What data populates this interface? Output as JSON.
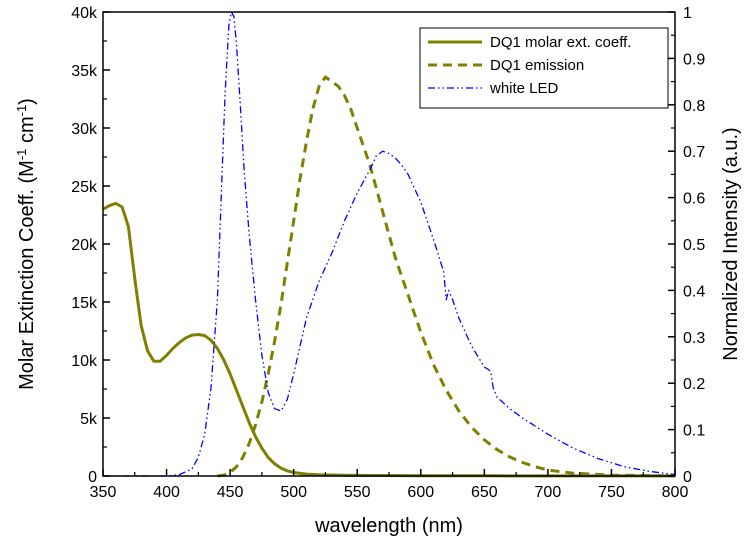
{
  "chart_data": {
    "type": "line",
    "xlabel": "wavelength (nm)",
    "ylabel_left": {
      "main": "Molar Extinction Coeff. (M",
      "sup1": "-1",
      "mid": " cm",
      "sup2": "-1",
      "end": ")"
    },
    "ylabel_right": "Normalized Intensity (a.u.)",
    "xlim": [
      350,
      800
    ],
    "ylim_left": [
      0,
      40000
    ],
    "ylim_right": [
      0,
      1
    ],
    "x_ticks": [
      350,
      400,
      450,
      500,
      550,
      600,
      650,
      700,
      750,
      800
    ],
    "x_tick_labels": [
      "350",
      "400",
      "450",
      "500",
      "550",
      "600",
      "650",
      "700",
      "750",
      "800"
    ],
    "y_left_ticks": [
      0,
      5000,
      10000,
      15000,
      20000,
      25000,
      30000,
      35000,
      40000
    ],
    "y_left_tick_labels": [
      "0",
      "5k",
      "10k",
      "15k",
      "20k",
      "25k",
      "30k",
      "35k",
      "40k"
    ],
    "y_right_ticks": [
      0,
      0.1,
      0.2,
      0.3,
      0.4,
      0.5,
      0.6,
      0.7,
      0.8,
      0.9,
      1
    ],
    "y_right_tick_labels": [
      "0",
      "0.1",
      "0.2",
      "0.3",
      "0.4",
      "0.5",
      "0.6",
      "0.7",
      "0.8",
      "0.9",
      "1"
    ],
    "grid": false,
    "legend_position": "top-right",
    "series": [
      {
        "name": "DQ1 molar ext. coeff.",
        "axis": "left",
        "style": "solid",
        "color": "#808000",
        "x": [
          350,
          355,
          360,
          365,
          370,
          375,
          380,
          385,
          390,
          395,
          400,
          405,
          410,
          415,
          420,
          425,
          430,
          435,
          440,
          445,
          450,
          455,
          460,
          465,
          470,
          475,
          480,
          485,
          490,
          495,
          500,
          510,
          520,
          540,
          560,
          600,
          650,
          700,
          800
        ],
        "y": [
          23000,
          23300,
          23500,
          23200,
          21500,
          17000,
          13000,
          10800,
          9900,
          9900,
          10400,
          11000,
          11500,
          11900,
          12150,
          12200,
          12100,
          11700,
          11000,
          10000,
          8800,
          7400,
          6000,
          4600,
          3400,
          2400,
          1600,
          1050,
          680,
          440,
          300,
          160,
          100,
          60,
          40,
          25,
          15,
          10,
          5
        ]
      },
      {
        "name": "DQ1 emission",
        "axis": "right",
        "style": "dash",
        "color": "#808000",
        "x": [
          440,
          445,
          450,
          455,
          460,
          465,
          470,
          475,
          480,
          485,
          490,
          495,
          500,
          505,
          510,
          515,
          520,
          525,
          530,
          535,
          540,
          545,
          550,
          555,
          560,
          565,
          570,
          575,
          580,
          585,
          590,
          595,
          600,
          610,
          620,
          630,
          640,
          650,
          660,
          670,
          680,
          690,
          700,
          720,
          750,
          800
        ],
        "y": [
          0,
          0.002,
          0.008,
          0.02,
          0.04,
          0.07,
          0.11,
          0.16,
          0.22,
          0.29,
          0.37,
          0.46,
          0.55,
          0.64,
          0.72,
          0.79,
          0.84,
          0.86,
          0.85,
          0.84,
          0.82,
          0.79,
          0.75,
          0.71,
          0.67,
          0.62,
          0.57,
          0.52,
          0.47,
          0.43,
          0.39,
          0.35,
          0.31,
          0.24,
          0.185,
          0.14,
          0.105,
          0.078,
          0.057,
          0.041,
          0.029,
          0.02,
          0.013,
          0.006,
          0.002,
          0
        ]
      },
      {
        "name": "white LED",
        "axis": "right",
        "style": "dashdotdot",
        "color": "#0000ff",
        "x": [
          350,
          400,
          410,
          420,
          425,
          430,
          435,
          440,
          443,
          446,
          449,
          451,
          453,
          455,
          458,
          461,
          465,
          470,
          475,
          480,
          485,
          490,
          495,
          500,
          505,
          510,
          520,
          530,
          540,
          550,
          560,
          565,
          570,
          575,
          580,
          585,
          590,
          600,
          610,
          618,
          620,
          622,
          625,
          630,
          640,
          650,
          653,
          655,
          657,
          660,
          670,
          680,
          700,
          720,
          740,
          760,
          780,
          800
        ],
        "y": [
          0,
          0,
          0.003,
          0.015,
          0.04,
          0.09,
          0.19,
          0.38,
          0.6,
          0.82,
          0.97,
          1.0,
          0.99,
          0.93,
          0.8,
          0.66,
          0.52,
          0.38,
          0.26,
          0.18,
          0.145,
          0.14,
          0.165,
          0.22,
          0.28,
          0.34,
          0.42,
          0.48,
          0.55,
          0.61,
          0.66,
          0.69,
          0.7,
          0.695,
          0.685,
          0.67,
          0.65,
          0.59,
          0.51,
          0.44,
          0.38,
          0.4,
          0.38,
          0.34,
          0.28,
          0.235,
          0.23,
          0.225,
          0.19,
          0.17,
          0.145,
          0.125,
          0.09,
          0.06,
          0.037,
          0.02,
          0.01,
          0.003
        ]
      }
    ]
  }
}
